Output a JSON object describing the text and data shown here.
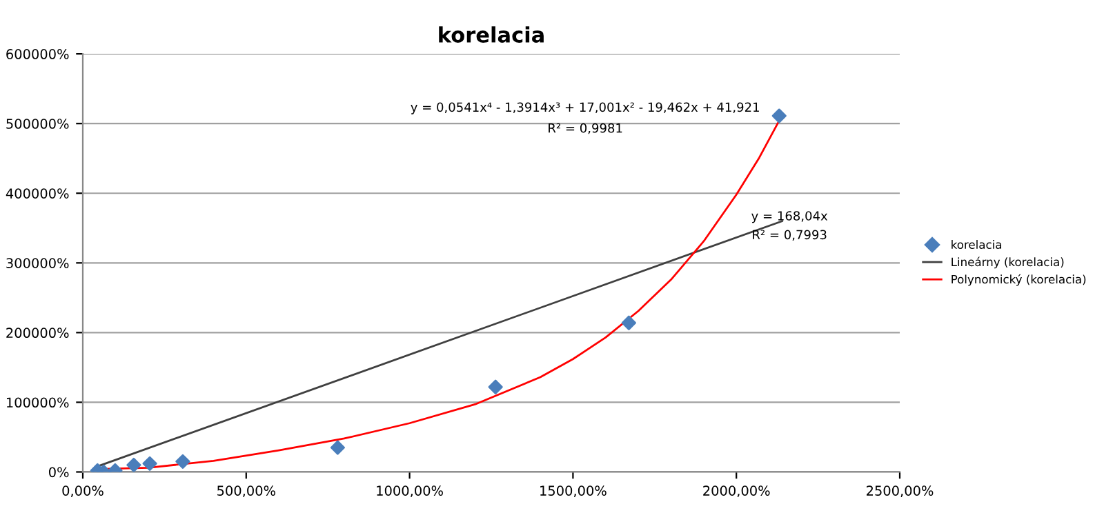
{
  "chart_data": {
    "type": "scatter",
    "title": "korelacia",
    "xlim": [
      0,
      2500
    ],
    "ylim": [
      0,
      600000
    ],
    "xticks": [
      {
        "value": 0,
        "label": "0,00%"
      },
      {
        "value": 500,
        "label": "500,00%"
      },
      {
        "value": 1000,
        "label": "1000,00%"
      },
      {
        "value": 1500,
        "label": "1500,00%"
      },
      {
        "value": 2000,
        "label": "2000,00%"
      },
      {
        "value": 2500,
        "label": "2500,00%"
      }
    ],
    "yticks": [
      {
        "value": 0,
        "label": "0%"
      },
      {
        "value": 100000,
        "label": "100000%"
      },
      {
        "value": 200000,
        "label": "200000%"
      },
      {
        "value": 300000,
        "label": "300000%"
      },
      {
        "value": 400000,
        "label": "400000%"
      },
      {
        "value": 500000,
        "label": "500000%"
      },
      {
        "value": 600000,
        "label": "600000%"
      }
    ],
    "grid": "y",
    "legend": "right",
    "series": [
      {
        "name": "korelacia",
        "marker": "diamond",
        "color": "#4a7ebb",
        "x": [
          45,
          64,
          99,
          156,
          205,
          306,
          780,
          1263,
          1671,
          2131
        ],
        "values": [
          2000,
          0,
          2000,
          10000,
          12000,
          15000,
          35000,
          122000,
          214000,
          511000
        ]
      },
      {
        "name": "Lineárny (korelacia)",
        "type": "line",
        "marker": "none",
        "color": "#404040",
        "x": [
          45,
          2140
        ],
        "values": [
          8000,
          360000
        ]
      },
      {
        "name": "Polynomický (korelacia)",
        "type": "line",
        "marker": "none",
        "color": "#ff0000",
        "x": [
          45,
          200,
          400,
          600,
          800,
          1000,
          1200,
          1400,
          1500,
          1600,
          1700,
          1800,
          1900,
          2000,
          2070,
          2140
        ],
        "values": [
          4000,
          6000,
          16000,
          31000,
          48000,
          70000,
          97000,
          136000,
          162000,
          193000,
          231000,
          276000,
          331000,
          398000,
          451000,
          512000
        ]
      }
    ],
    "annotations": [
      "y = 0,0541x⁴ - 1,3914x³ + 17,001x² - 19,462x + 41,921",
      "R² = 0,9981",
      "y = 168,04x",
      "R² = 0,7993"
    ]
  }
}
